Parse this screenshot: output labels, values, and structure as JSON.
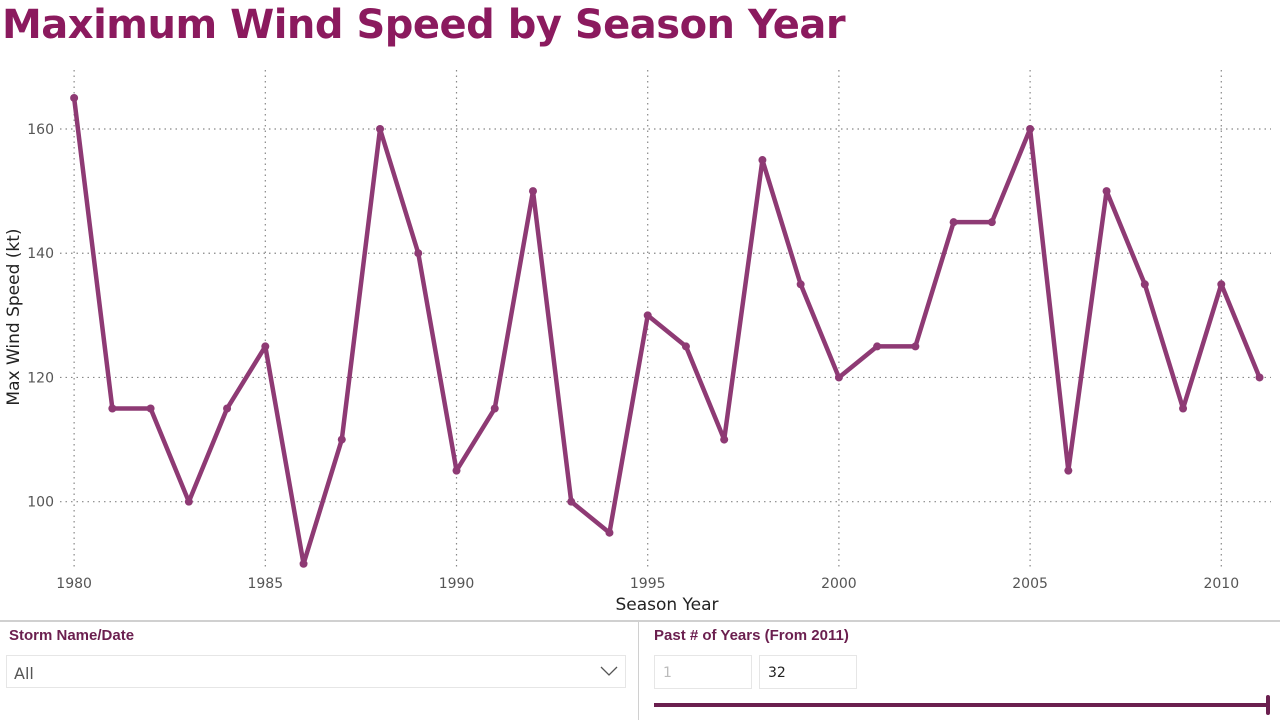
{
  "title": "Maximum Wind Speed by Season Year",
  "chart_data": {
    "type": "line",
    "title": "Maximum Wind Speed by Season Year",
    "xlabel": "Season Year",
    "ylabel": "Max Wind Speed (kt)",
    "x": [
      1980,
      1981,
      1982,
      1983,
      1984,
      1985,
      1986,
      1987,
      1988,
      1989,
      1990,
      1991,
      1992,
      1993,
      1994,
      1995,
      1996,
      1997,
      1998,
      1999,
      2000,
      2001,
      2002,
      2003,
      2004,
      2005,
      2006,
      2007,
      2008,
      2009,
      2010,
      2011
    ],
    "values": [
      165,
      115,
      115,
      100,
      115,
      125,
      90,
      110,
      160,
      140,
      105,
      115,
      150,
      100,
      95,
      130,
      125,
      110,
      155,
      135,
      120,
      125,
      125,
      145,
      145,
      160,
      105,
      150,
      135,
      115,
      135,
      120
    ],
    "xticks": [
      "1980",
      "1985",
      "1990",
      "1995",
      "2000",
      "2005",
      "2010"
    ],
    "yticks": [
      "100",
      "120",
      "140",
      "160"
    ],
    "xlim": [
      1979.5,
      2011.3
    ],
    "ylim": [
      89,
      169.5
    ],
    "grid": true,
    "line_color": "#8E3A74"
  },
  "slicers": {
    "storm": {
      "title": "Storm Name/Date",
      "value": "All"
    },
    "years": {
      "title": "Past # of Years (From 2011)",
      "min": "1",
      "max": "32",
      "fill_fraction": 1.0
    }
  }
}
